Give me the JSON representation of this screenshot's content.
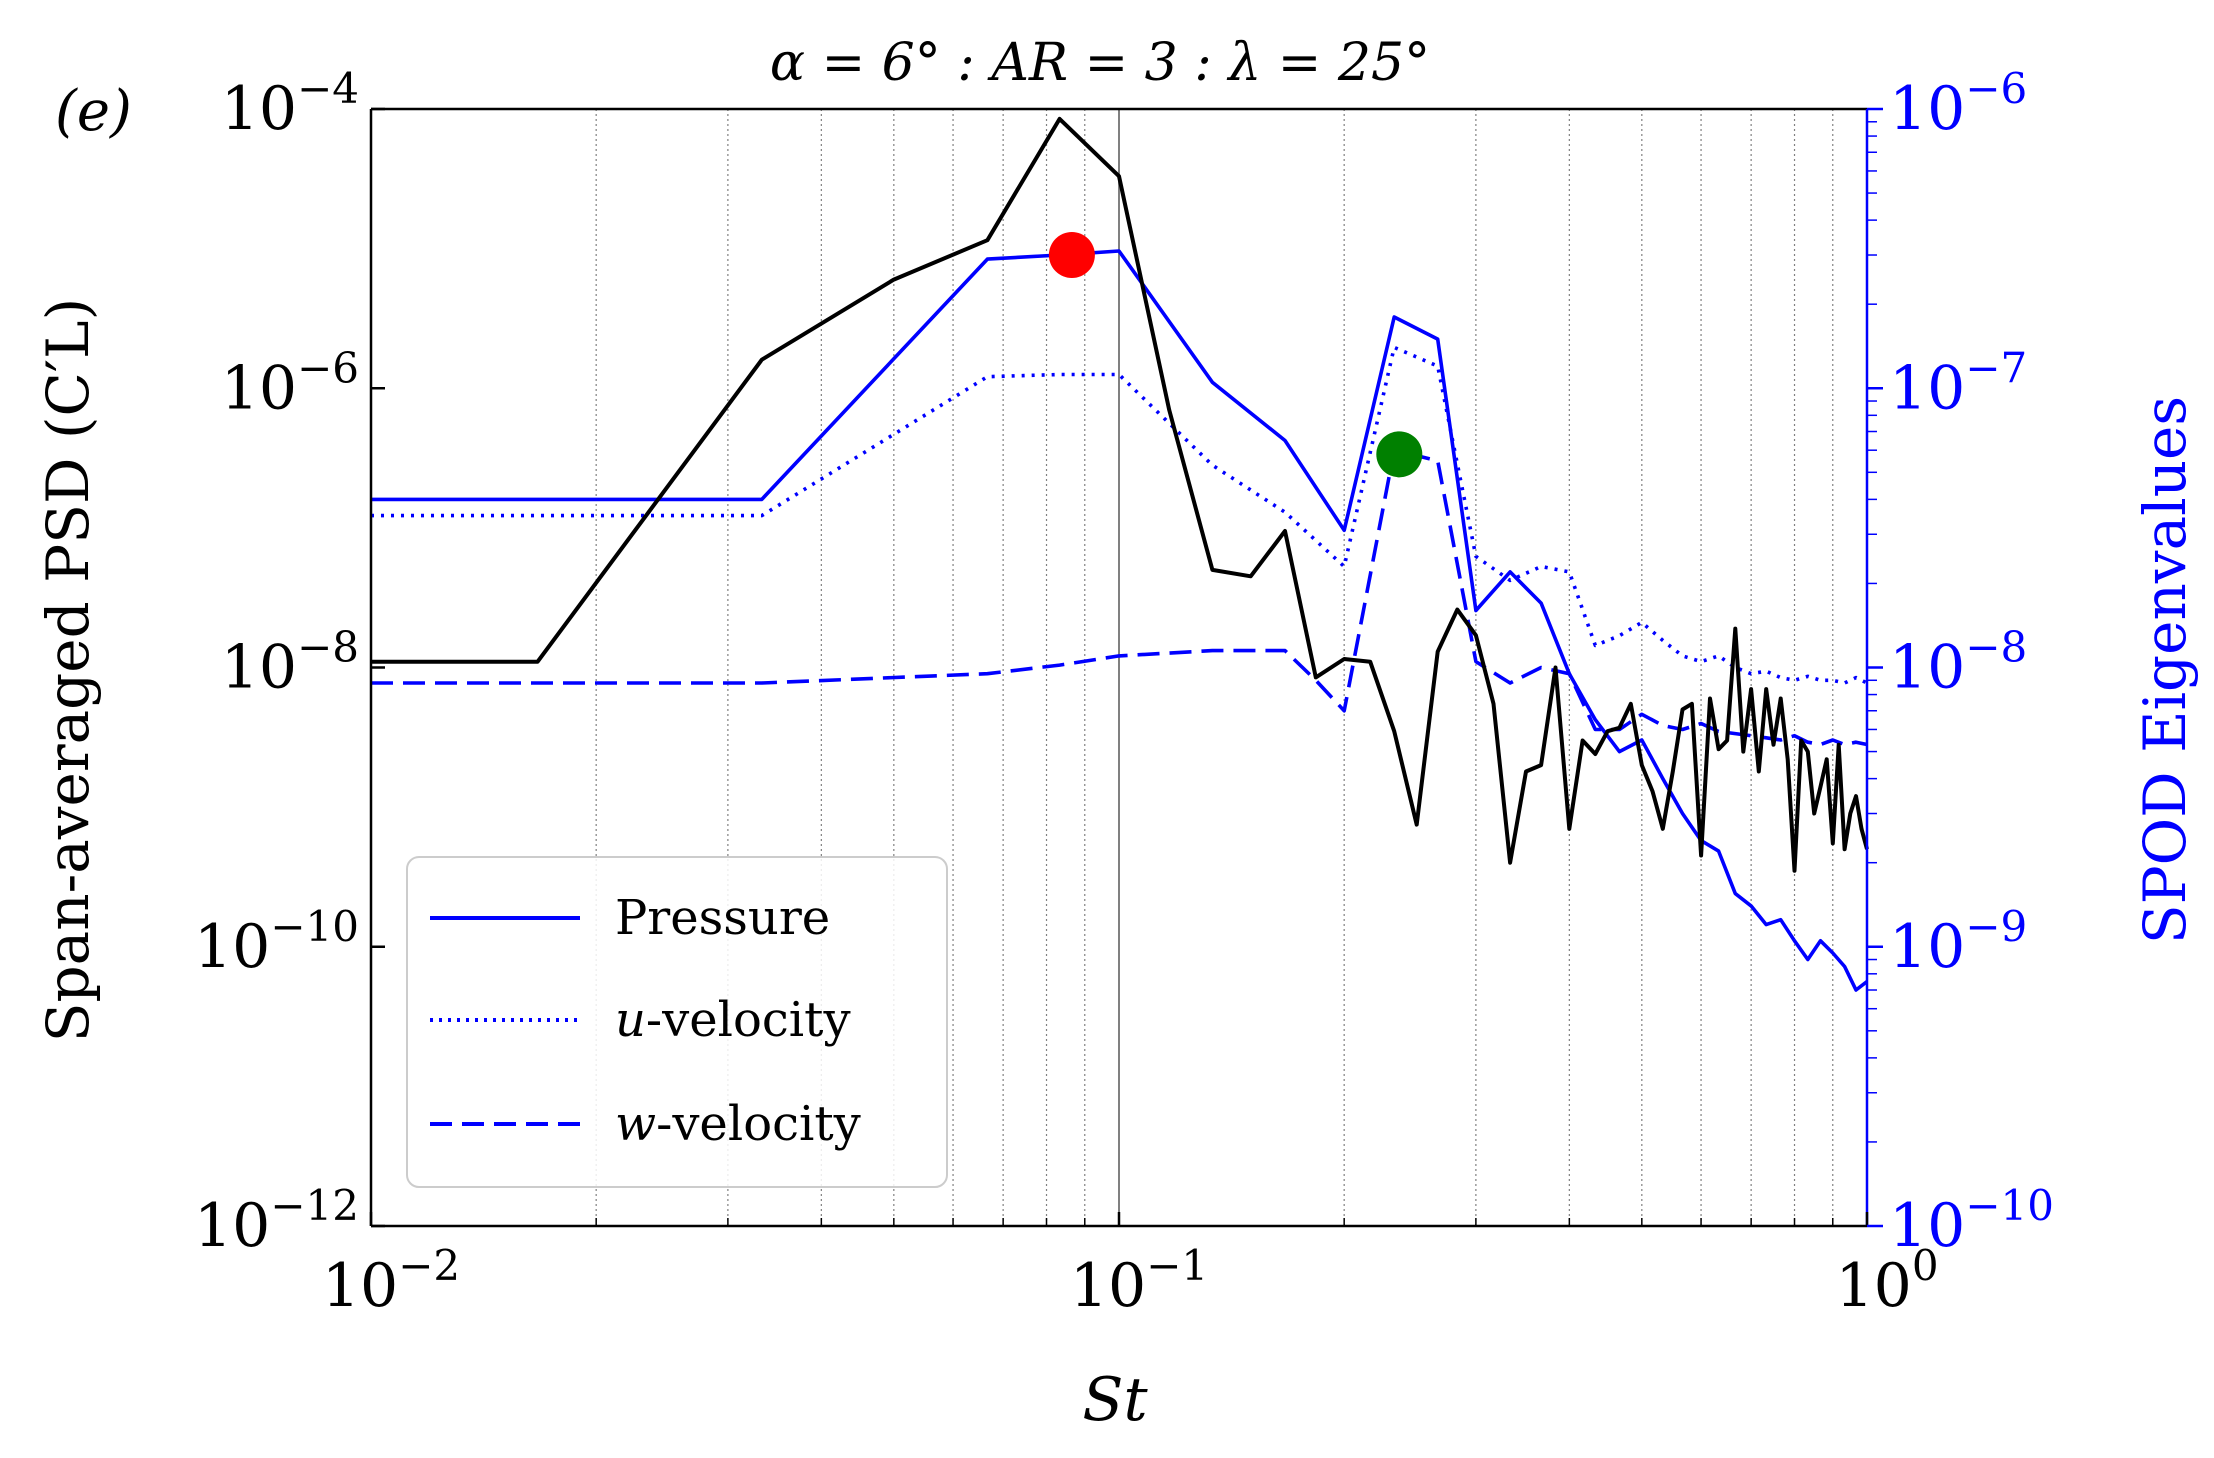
{
  "chart_data": {
    "type": "line",
    "panel_label": "(e)",
    "title": "α = 6° : AR = 3 : λ = 25°",
    "xlabel": "St",
    "ylabel_left": "Span-averaged PSD (C′L)",
    "ylabel_right": "SPOD Eigenvalues",
    "xscale": "log",
    "xlim": [
      0.01,
      1
    ],
    "ylim_left": [
      1e-12,
      0.0001
    ],
    "ylim_right": [
      1e-10,
      1e-06
    ],
    "x_ticks": [
      {
        "value": 0.01,
        "base": "10",
        "exp": "−2"
      },
      {
        "value": 0.1,
        "base": "10",
        "exp": "−1"
      },
      {
        "value": 1,
        "base": "10",
        "exp": "0"
      }
    ],
    "y_ticks_left": [
      {
        "value": 0.0001,
        "base": "10",
        "exp": "−4"
      },
      {
        "value": 1e-06,
        "base": "10",
        "exp": "−6"
      },
      {
        "value": 1e-08,
        "base": "10",
        "exp": "−8"
      },
      {
        "value": 1e-10,
        "base": "10",
        "exp": "−10"
      },
      {
        "value": 1e-12,
        "base": "10",
        "exp": "−12"
      }
    ],
    "y_ticks_right": [
      {
        "value": 1e-06,
        "base": "10",
        "exp": "−6"
      },
      {
        "value": 1e-07,
        "base": "10",
        "exp": "−7"
      },
      {
        "value": 1e-08,
        "base": "10",
        "exp": "−8"
      },
      {
        "value": 1e-09,
        "base": "10",
        "exp": "−9"
      },
      {
        "value": 1e-10,
        "base": "10",
        "exp": "−10"
      }
    ],
    "vline_x": 0.1,
    "colors": {
      "psd": "#000000",
      "spod": "#0000ff",
      "red_marker": "#ff0000",
      "green_marker": "#008000",
      "grid": "#808080"
    },
    "psd_series": {
      "name": "Span-averaged PSD",
      "axis": "left",
      "x": [
        0.01,
        0.0167,
        0.0333,
        0.05,
        0.0667,
        0.0833,
        0.1,
        0.1167,
        0.1333,
        0.15,
        0.1667,
        0.1833,
        0.2,
        0.2167,
        0.2333,
        0.25,
        0.2667,
        0.2833,
        0.3,
        0.3167,
        0.3333,
        0.35,
        0.3667,
        0.3833,
        0.4,
        0.4167,
        0.4333,
        0.45,
        0.4667,
        0.4833,
        0.5,
        0.5167,
        0.5333,
        0.55,
        0.5667,
        0.5833,
        0.6,
        0.6167,
        0.6333,
        0.65,
        0.6667,
        0.6833,
        0.7,
        0.7167,
        0.7333,
        0.75,
        0.7667,
        0.7833,
        0.8,
        0.8167,
        0.8333,
        0.85,
        0.8667,
        0.8833,
        0.9,
        0.9167,
        0.9333,
        0.95,
        0.9667,
        0.9833,
        1.0
      ],
      "y": [
        1.1e-08,
        1.1e-08,
        1.6e-06,
        6e-06,
        1.15e-05,
        8.5e-05,
        3.3e-05,
        7e-07,
        5e-08,
        4.5e-08,
        9.5e-08,
        8.5e-09,
        1.15e-08,
        1.1e-08,
        3.5e-09,
        7.5e-10,
        1.3e-08,
        2.6e-08,
        1.7e-08,
        5.5e-09,
        4e-10,
        1.8e-09,
        2e-09,
        1e-08,
        7e-10,
        3e-09,
        2.4e-09,
        3.5e-09,
        3.7e-09,
        5.5e-09,
        2e-09,
        1.3e-09,
        7e-10,
        1.8e-09,
        5e-09,
        5.5e-09,
        4.5e-10,
        6e-09,
        2.6e-09,
        3e-09,
        1.9e-08,
        2.5e-09,
        7e-09,
        1.8e-09,
        7e-09,
        2.8e-09,
        6e-09,
        2.2e-09,
        3.5e-10,
        3e-09,
        2.5e-09,
        9e-10,
        1.4e-09,
        2.2e-09,
        5.5e-10,
        2.8e-09,
        5e-10,
        9e-10,
        1.2e-09,
        7e-10,
        5e-10
      ]
    },
    "spod_series": [
      {
        "name": "Pressure",
        "style": "solid",
        "axis": "right",
        "x": [
          0.01,
          0.0333,
          0.0667,
          0.0833,
          0.1,
          0.1333,
          0.1667,
          0.2,
          0.2333,
          0.2667,
          0.3,
          0.3333,
          0.3667,
          0.4,
          0.4333,
          0.4667,
          0.5,
          0.5333,
          0.5667,
          0.6,
          0.6333,
          0.6667,
          0.7,
          0.7333,
          0.7667,
          0.8,
          0.8333,
          0.8667,
          0.9,
          0.9333,
          0.9667,
          1.0
        ],
        "y": [
          4e-08,
          4e-08,
          2.9e-07,
          3e-07,
          3.1e-07,
          1.05e-07,
          6.5e-08,
          3.1e-08,
          1.8e-07,
          1.5e-07,
          1.6e-08,
          2.2e-08,
          1.7e-08,
          9.5e-09,
          6.5e-09,
          5e-09,
          5.5e-09,
          4e-09,
          3e-09,
          2.4e-09,
          2.2e-09,
          1.55e-09,
          1.4e-09,
          1.2e-09,
          1.25e-09,
          1.05e-09,
          9e-10,
          1.05e-09,
          9.5e-10,
          8.5e-10,
          7e-10,
          7.5e-10
        ]
      },
      {
        "name": "u-velocity",
        "style": "dotted",
        "axis": "right",
        "x": [
          0.01,
          0.0333,
          0.0667,
          0.0833,
          0.1,
          0.1333,
          0.1667,
          0.2,
          0.2333,
          0.2667,
          0.3,
          0.3333,
          0.3667,
          0.4,
          0.4333,
          0.4667,
          0.5,
          0.5333,
          0.5667,
          0.6,
          0.6333,
          0.6667,
          0.7,
          0.7333,
          0.7667,
          0.8,
          0.8333,
          0.8667,
          0.9,
          0.9333,
          0.9667,
          1.0
        ],
        "y": [
          3.5e-08,
          3.5e-08,
          1.1e-07,
          1.12e-07,
          1.12e-07,
          5.3e-08,
          3.6e-08,
          2.3e-08,
          1.4e-07,
          1.2e-07,
          2.5e-08,
          2.05e-08,
          2.3e-08,
          2.2e-08,
          1.2e-08,
          1.3e-08,
          1.45e-08,
          1.25e-08,
          1.1e-08,
          1.05e-08,
          1.1e-08,
          1e-08,
          9.5e-09,
          9.7e-09,
          9.2e-09,
          9e-09,
          9.3e-09,
          9e-09,
          9e-09,
          8.8e-09,
          9.2e-09,
          8.8e-09
        ]
      },
      {
        "name": "w-velocity",
        "style": "dashed",
        "axis": "right",
        "x": [
          0.01,
          0.0333,
          0.0667,
          0.0833,
          0.1,
          0.1333,
          0.1667,
          0.1833,
          0.2,
          0.2333,
          0.2667,
          0.3,
          0.3333,
          0.3667,
          0.4,
          0.4333,
          0.4667,
          0.5,
          0.5333,
          0.5667,
          0.6,
          0.6333,
          0.6667,
          0.7,
          0.7333,
          0.7667,
          0.8,
          0.8333,
          0.8667,
          0.9,
          0.9333,
          0.9667,
          1.0
        ],
        "y": [
          8.8e-09,
          8.8e-09,
          9.5e-09,
          1.02e-08,
          1.1e-08,
          1.15e-08,
          1.15e-08,
          9e-09,
          7e-09,
          6e-08,
          5.5e-08,
          1.05e-08,
          8.8e-09,
          1e-08,
          9.5e-09,
          6e-09,
          6e-09,
          6.8e-09,
          6.2e-09,
          6e-09,
          6.3e-09,
          5.9e-09,
          5.8e-09,
          5.7e-09,
          5.6e-09,
          5.5e-09,
          5.7e-09,
          5.4e-09,
          5.3e-09,
          5.5e-09,
          5.3e-09,
          5.4e-09,
          5.3e-09
        ]
      }
    ],
    "markers": [
      {
        "name": "red",
        "x": 0.0865,
        "y_right": 3e-07,
        "color": "#ff0000"
      },
      {
        "name": "green",
        "x": 0.237,
        "y_right": 5.8e-08,
        "color": "#008000"
      }
    ],
    "legend": {
      "position": "lower-left",
      "entries": [
        {
          "label_italic": "",
          "label": "Pressure",
          "style": "solid"
        },
        {
          "label_italic": "u",
          "label": "-velocity",
          "style": "dotted"
        },
        {
          "label_italic": "w",
          "label": "-velocity",
          "style": "dashed"
        }
      ]
    }
  }
}
